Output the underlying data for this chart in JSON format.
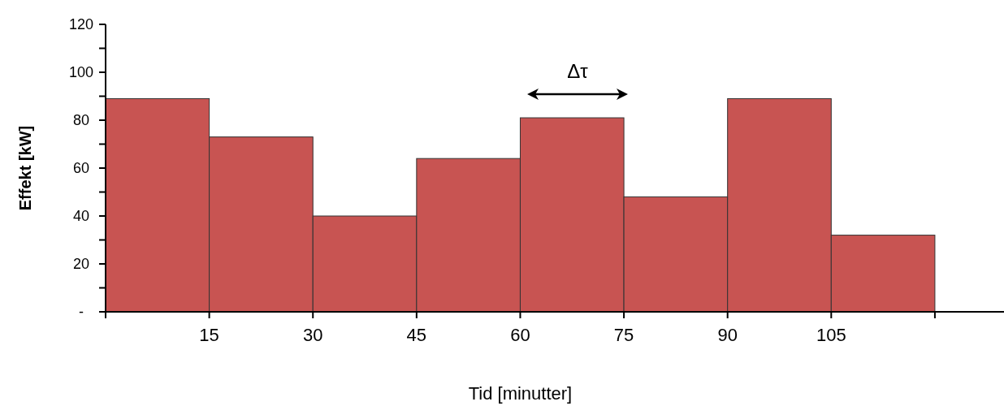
{
  "chart_data": {
    "type": "histogram",
    "xlabel": "Tid [minutter]",
    "ylabel": "Effekt [kW]",
    "bins": [
      0,
      15,
      30,
      45,
      60,
      75,
      90,
      105,
      120
    ],
    "values": [
      89,
      73,
      40,
      64,
      81,
      48,
      89,
      32
    ],
    "color": "#c85452",
    "xlim": [
      0,
      130
    ],
    "xticks": [
      {
        "value": 0,
        "label": null
      },
      15,
      30,
      45,
      60,
      75,
      90,
      105,
      {
        "value": 120,
        "label": null
      }
    ],
    "ylim": [
      0,
      120
    ],
    "yticks": [
      {
        "value": 0,
        "label": "-"
      },
      {
        "value": 10,
        "label": null
      },
      20,
      {
        "value": 30,
        "label": null
      },
      40,
      {
        "value": 50,
        "label": null
      },
      60,
      {
        "value": 70,
        "label": null
      },
      80,
      {
        "value": 90,
        "label": null
      },
      100,
      {
        "value": 110,
        "label": null
      },
      120
    ],
    "annotations": [
      "Δτ"
    ]
  }
}
